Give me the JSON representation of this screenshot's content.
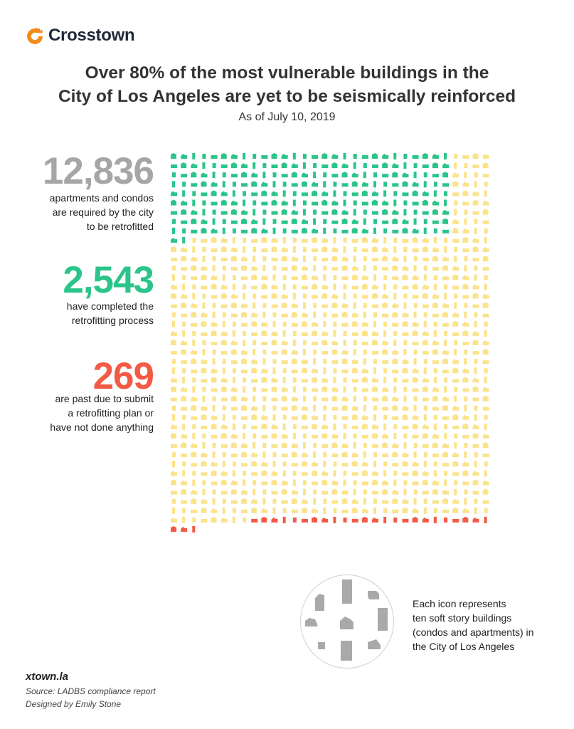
{
  "brand": {
    "name": "Crosstown",
    "color": "#f28a1c"
  },
  "header": {
    "title_line1": "Over 80% of the most vulnerable buildings in the",
    "title_line2": "City of Los Angeles are yet to be seismically reinforced",
    "subtitle": "As of July 10, 2019"
  },
  "stats": [
    {
      "value": "12,836",
      "color": "#a6a6a6",
      "lines": [
        "apartments and condos",
        "are required by the city",
        "to be retrofitted"
      ]
    },
    {
      "value": "2,543",
      "color": "#2bc48a",
      "lines": [
        "have completed the",
        "retrofitting process"
      ]
    },
    {
      "value": "269",
      "color": "#f25a45",
      "lines": [
        "are past due to submit",
        "a retrofitting plan or",
        "have not done anything"
      ]
    }
  ],
  "legend": {
    "lines": [
      "Each icon represents",
      "ten soft story buildings",
      "(condos and apartments) in",
      "the City of Los Angeles"
    ],
    "icon_color": "#a9a9a9"
  },
  "footer": {
    "site": "xtown.la",
    "source": "Source: LADBS compliance report",
    "designer": "Designed by Emily Stone"
  },
  "chart_data": {
    "type": "waffle",
    "unit": "Each icon represents ten soft story buildings",
    "total": 12836,
    "segments": [
      {
        "name": "have completed the retrofitting process",
        "value": 2543,
        "color": "#2bc48a"
      },
      {
        "name": "are past due to submit a retrofitting plan or have not done anything",
        "value": 269,
        "color": "#f25a45"
      },
      {
        "name": "",
        "value": 10024,
        "color": "#fbe38c"
      }
    ]
  }
}
